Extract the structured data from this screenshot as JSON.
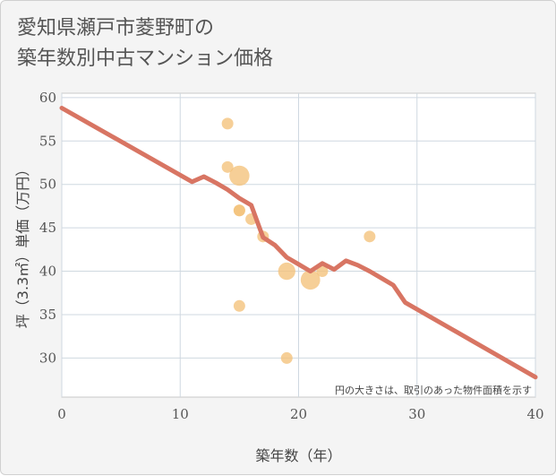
{
  "header": {
    "title_line1": "愛知県瀬戸市菱野町の",
    "title_line2": "築年数別中古マンション価格"
  },
  "chart_data": {
    "type": "scatter",
    "title": "愛知県瀬戸市菱野町の築年数別中古マンション価格",
    "xlabel": "築年数（年）",
    "ylabel": "坪（3.3㎡）単価（万円）",
    "xlim": [
      0,
      40
    ],
    "ylim": [
      25.5,
      60.5
    ],
    "xticks": [
      0,
      10,
      20,
      30,
      40
    ],
    "yticks": [
      30,
      35,
      40,
      45,
      50,
      55,
      60
    ],
    "grid": true,
    "annotation": "円の大きさは、取引のあった物件面積を示す",
    "colors": {
      "points": "#f3c27a",
      "trend": "#d87563",
      "plot_bg": "#ffffff",
      "grid": "#cfd8e0"
    },
    "points": [
      {
        "x": 14,
        "y": 57,
        "size": 1
      },
      {
        "x": 14,
        "y": 52,
        "size": 1
      },
      {
        "x": 15,
        "y": 51,
        "size": 3
      },
      {
        "x": 15,
        "y": 47,
        "size": 1
      },
      {
        "x": 15,
        "y": 47,
        "size": 1
      },
      {
        "x": 16,
        "y": 46,
        "size": 1
      },
      {
        "x": 17,
        "y": 44,
        "size": 1
      },
      {
        "x": 19,
        "y": 40,
        "size": 2.2
      },
      {
        "x": 21,
        "y": 39,
        "size": 2.8
      },
      {
        "x": 22,
        "y": 40,
        "size": 1
      },
      {
        "x": 26,
        "y": 44,
        "size": 1
      },
      {
        "x": 15,
        "y": 36,
        "size": 1
      },
      {
        "x": 19,
        "y": 30,
        "size": 1
      }
    ],
    "trend": {
      "x": [
        0,
        11,
        12,
        13,
        14,
        15,
        16,
        17,
        18,
        19,
        20,
        21,
        22,
        23,
        24,
        25,
        26,
        27,
        28,
        29,
        40
      ],
      "y": [
        58.8,
        50.3,
        50.9,
        50.2,
        49.4,
        48.4,
        47.6,
        43.9,
        43.0,
        41.6,
        40.8,
        40.0,
        40.9,
        40.2,
        41.2,
        40.7,
        40.0,
        39.2,
        38.4,
        36.4,
        27.8
      ]
    }
  }
}
